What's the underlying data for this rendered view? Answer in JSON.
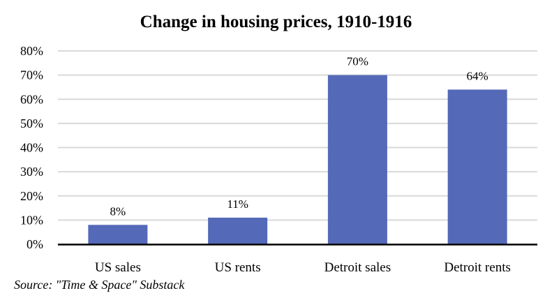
{
  "chart_data": {
    "type": "bar",
    "title": "Change in housing prices, 1910-1916",
    "categories": [
      "US sales",
      "US rents",
      "Detroit sales",
      "Detroit rents"
    ],
    "values": [
      8,
      11,
      70,
      64
    ],
    "data_labels": [
      "8%",
      "11%",
      "70%",
      "64%"
    ],
    "xlabel": "",
    "ylabel": "",
    "ylim": [
      0,
      80
    ],
    "yticks": [
      "0%",
      "10%",
      "20%",
      "30%",
      "40%",
      "50%",
      "60%",
      "70%",
      "80%"
    ],
    "grid": true,
    "bar_color": "#5469B8",
    "grid_color": "#D9D9D9",
    "source": "Source: \"Time & Space\" Substack"
  }
}
